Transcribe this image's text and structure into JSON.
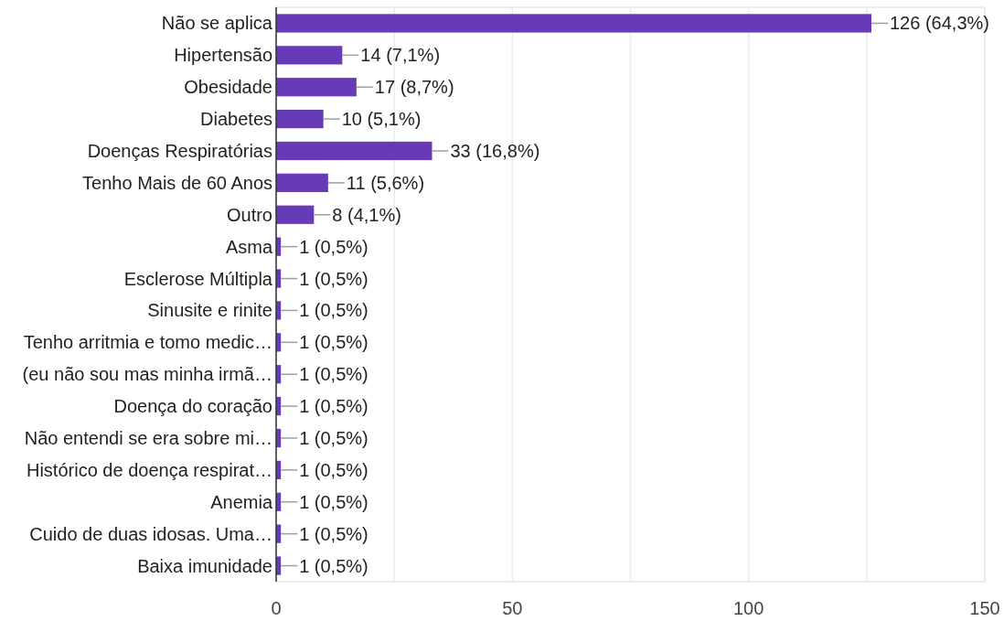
{
  "chart_data": {
    "type": "bar",
    "orientation": "horizontal",
    "categories": [
      "Não se aplica",
      "Hipertensão",
      "Obesidade",
      "Diabetes",
      "Doenças Respiratórias",
      "Tenho Mais de 60 Anos",
      "Outro",
      "Asma",
      "Esclerose Múltipla",
      "Sinusite e rinite",
      "Tenho arritmia e tomo medic…",
      "(eu não sou mas minha irmã…",
      "Doença do coração",
      "Não entendi se era sobre mi…",
      "Histórico de doença respirat…",
      "Anemia",
      "Cuido de duas idosas. Uma…",
      "Baixa imunidade"
    ],
    "values": [
      126,
      14,
      17,
      10,
      33,
      11,
      8,
      1,
      1,
      1,
      1,
      1,
      1,
      1,
      1,
      1,
      1,
      1
    ],
    "value_labels": [
      "126 (64,3%)",
      "14 (7,1%)",
      "17 (8,7%)",
      "10 (5,1%)",
      "33 (16,8%)",
      "11 (5,6%)",
      "8 (4,1%)",
      "1 (0,5%)",
      "1 (0,5%)",
      "1 (0,5%)",
      "1 (0,5%)",
      "1 (0,5%)",
      "1 (0,5%)",
      "1 (0,5%)",
      "1 (0,5%)",
      "1 (0,5%)",
      "1 (0,5%)",
      "1 (0,5%)"
    ],
    "color": "#673ab7",
    "xlim": [
      0,
      150
    ],
    "xticks": [
      0,
      {
        "value": 25,
        "label": null
      },
      50,
      {
        "value": 75,
        "label": null
      },
      100,
      {
        "value": 125,
        "label": null
      },
      150
    ],
    "grid": "x"
  }
}
